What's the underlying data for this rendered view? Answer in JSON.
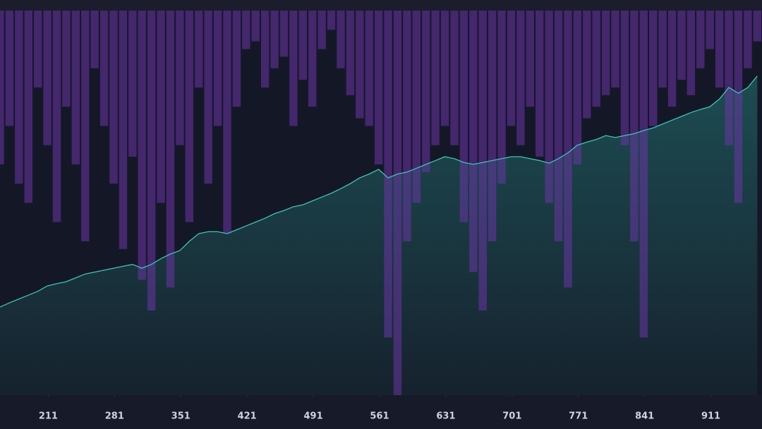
{
  "chart_data": {
    "type": "combo",
    "x": [
      160,
      170,
      180,
      190,
      200,
      210,
      220,
      230,
      240,
      250,
      260,
      270,
      280,
      290,
      300,
      310,
      320,
      330,
      340,
      350,
      360,
      370,
      380,
      390,
      400,
      410,
      420,
      430,
      440,
      450,
      460,
      470,
      480,
      490,
      500,
      510,
      520,
      530,
      540,
      550,
      560,
      570,
      580,
      590,
      600,
      610,
      620,
      630,
      640,
      650,
      660,
      670,
      680,
      690,
      700,
      710,
      720,
      730,
      740,
      750,
      760,
      770,
      780,
      790,
      800,
      810,
      820,
      830,
      840,
      850,
      860,
      870,
      880,
      890,
      900,
      910,
      920,
      930,
      940,
      950,
      960
    ],
    "xlim": [
      160,
      965
    ],
    "xticks": [
      211,
      281,
      351,
      421,
      491,
      561,
      631,
      701,
      771,
      841,
      911
    ],
    "ylim": [
      0,
      100
    ],
    "y2lim": [
      0,
      -100
    ],
    "series": [
      {
        "type": "bar",
        "axis": "y2",
        "color": "#6b35a8",
        "values": [
          -40,
          -30,
          -45,
          -50,
          -20,
          -35,
          -55,
          -25,
          -40,
          -60,
          -15,
          -30,
          -45,
          -62,
          -38,
          -70,
          -78,
          -50,
          -72,
          -35,
          -55,
          -20,
          -45,
          -30,
          -58,
          -25,
          -10,
          -8,
          -20,
          -15,
          -12,
          -30,
          -18,
          -25,
          -10,
          -5,
          -15,
          -22,
          -28,
          -30,
          -40,
          -85,
          -100,
          -60,
          -50,
          -42,
          -35,
          -30,
          -35,
          -55,
          -68,
          -78,
          -60,
          -45,
          -30,
          -35,
          -25,
          -38,
          -50,
          -60,
          -72,
          -40,
          -28,
          -25,
          -22,
          -20,
          -35,
          -60,
          -85,
          -30,
          -20,
          -25,
          -18,
          -22,
          -15,
          -10,
          -20,
          -35,
          -50,
          -15,
          -8
        ]
      },
      {
        "type": "area",
        "color": "#3fc4b4",
        "values": [
          22.9,
          24,
          25,
          26,
          27,
          28.4,
          29,
          29.5,
          30.5,
          31.5,
          32,
          32.5,
          33,
          33.5,
          34,
          33,
          34,
          35.5,
          36.7,
          37.6,
          40,
          42,
          42.5,
          42.5,
          42,
          43,
          44,
          45,
          46,
          47.2,
          48,
          49,
          49.5,
          50.5,
          51.5,
          52.5,
          53.7,
          55,
          56.5,
          57.5,
          58.7,
          56.5,
          57.5,
          58,
          59,
          60,
          61,
          62,
          61.5,
          60.5,
          60,
          60.5,
          61,
          61.5,
          62,
          62,
          61.5,
          61,
          60.3,
          61.5,
          63,
          65,
          65.8,
          66.5,
          67.5,
          67,
          67.5,
          68,
          68.8,
          69.5,
          70.5,
          71.5,
          72.5,
          73.5,
          74.3,
          75,
          77,
          80,
          78.5,
          80,
          83
        ]
      }
    ]
  }
}
